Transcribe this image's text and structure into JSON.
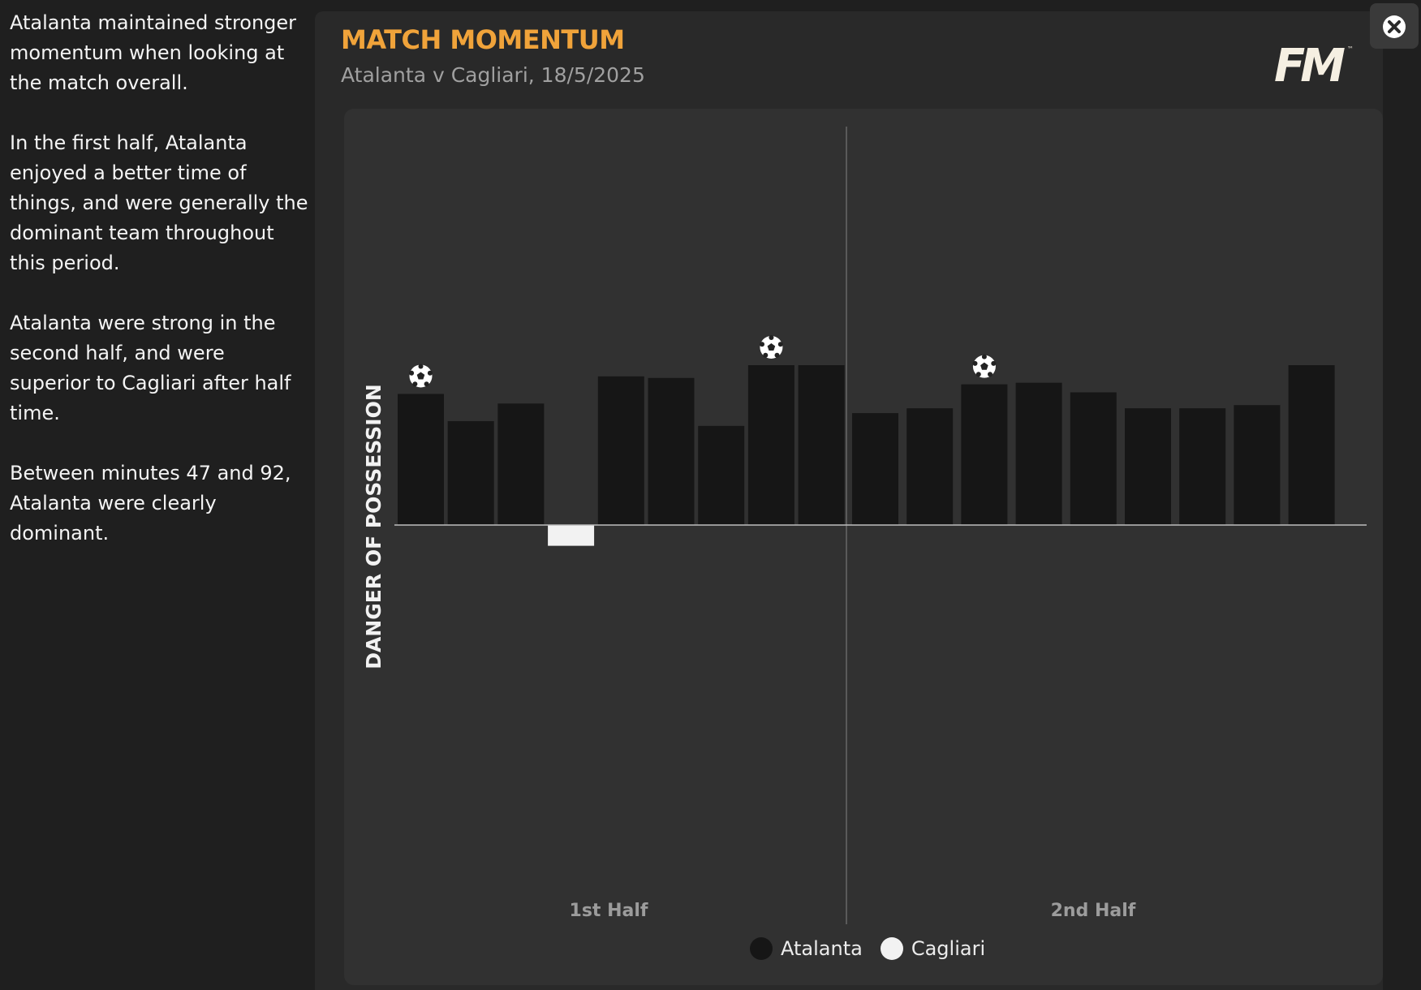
{
  "summary": {
    "paragraphs": [
      "Atalanta maintained stronger momentum when looking at the match overall.",
      "In the first half, Atalanta enjoyed a better time of things, and were generally the dominant team throughout this period.",
      "Atalanta were strong in the second half, and were superior to Cagliari after half time.",
      "Between minutes 47 and 92, Atalanta were clearly dominant."
    ]
  },
  "header": {
    "title": "MATCH MOMENTUM",
    "subtitle": "Atalanta v Cagliari, 18/5/2025",
    "logo_text": "FM",
    "logo_tm": "™"
  },
  "close_icon": "close-icon",
  "chart_data": {
    "type": "bar",
    "ylabel": "DANGER OF POSSESSION",
    "sections": [
      "1st Half",
      "2nd Half"
    ],
    "colors": {
      "Atalanta": "#161616",
      "Cagliari": "#f2f2f2"
    },
    "first_half": [
      {
        "team": "Atalanta",
        "value": 0.82,
        "goal": true
      },
      {
        "team": "Atalanta",
        "value": 0.65,
        "goal": false
      },
      {
        "team": "Atalanta",
        "value": 0.76,
        "goal": false
      },
      {
        "team": "Cagliari",
        "value": 0.13,
        "goal": false
      },
      {
        "team": "Atalanta",
        "value": 0.93,
        "goal": false
      },
      {
        "team": "Atalanta",
        "value": 0.92,
        "goal": false
      },
      {
        "team": "Atalanta",
        "value": 0.62,
        "goal": false
      },
      {
        "team": "Atalanta",
        "value": 1.0,
        "goal": true
      },
      {
        "team": "Atalanta",
        "value": 1.0,
        "goal": false
      }
    ],
    "second_half": [
      {
        "team": "Atalanta",
        "value": 0.7,
        "goal": false
      },
      {
        "team": "Atalanta",
        "value": 0.73,
        "goal": false
      },
      {
        "team": "Atalanta",
        "value": 0.88,
        "goal": true
      },
      {
        "team": "Atalanta",
        "value": 0.89,
        "goal": false
      },
      {
        "team": "Atalanta",
        "value": 0.83,
        "goal": false
      },
      {
        "team": "Atalanta",
        "value": 0.73,
        "goal": false
      },
      {
        "team": "Atalanta",
        "value": 0.73,
        "goal": false
      },
      {
        "team": "Atalanta",
        "value": 0.75,
        "goal": false
      },
      {
        "team": "Atalanta",
        "value": 1.0,
        "goal": false
      }
    ]
  },
  "legend": [
    {
      "name": "Atalanta",
      "color": "#161616"
    },
    {
      "name": "Cagliari",
      "color": "#f2f2f2"
    }
  ]
}
